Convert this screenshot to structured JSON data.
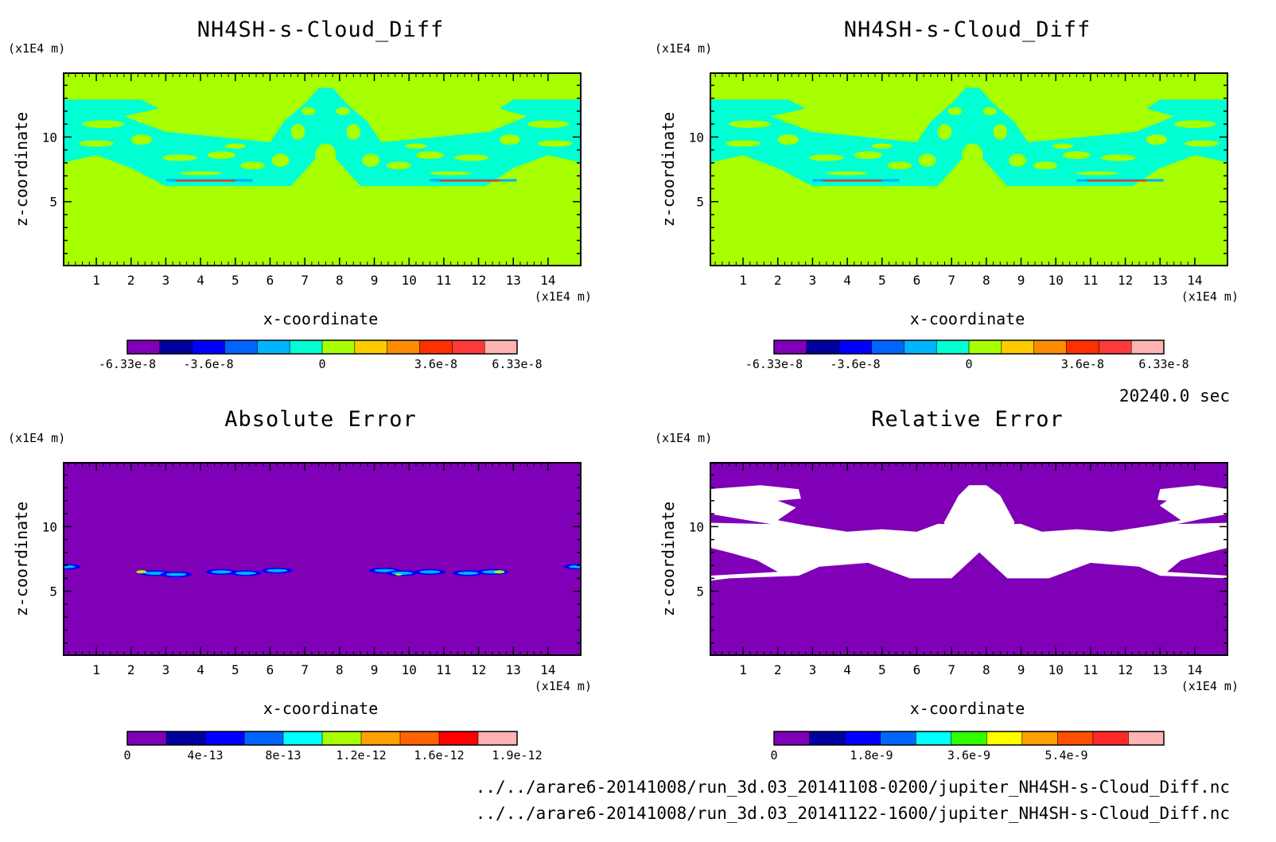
{
  "timestamp": "20240.0 sec",
  "footer": {
    "line1": "../../arare6-20141008/run_3d.03_20141108-0200/jupiter_NH4SH-s-Cloud_Diff.nc",
    "line2": "../../arare6-20141008/run_3d.03_20141122-1600/jupiter_NH4SH-s-Cloud_Diff.nc"
  },
  "chart_data": [
    {
      "type": "heatmap",
      "title": "NH4SH-s-Cloud_Diff",
      "xlabel": "x-coordinate",
      "ylabel": "z-coordinate",
      "x_unit": "(x1E4 m)",
      "y_unit": "(x1E4 m)",
      "xlim": [
        0.06,
        14.94
      ],
      "ylim": [
        0.06,
        14.94
      ],
      "xticks": [
        "1",
        "2",
        "3",
        "4",
        "5",
        "6",
        "7",
        "8",
        "9",
        "10",
        "11",
        "12",
        "13",
        "14"
      ],
      "yticks": [
        "5",
        "10"
      ],
      "background": "#a8ff00",
      "colorbar": {
        "colors": [
          "#7f00b7",
          "#00009f",
          "#0000ff",
          "#0064ff",
          "#00b4ff",
          "#00ffd2",
          "#a8ff00",
          "#ffcc00",
          "#ff8c00",
          "#ff3000",
          "#ff3a3a",
          "#ffb4b4"
        ],
        "labels": [
          "-6.33e-8",
          "-3.6e-8",
          "0",
          "3.6e-8",
          "6.33e-8"
        ]
      },
      "features": "cyan cloud band between z~5.5 and z~13 with central tower near x=7.5 and thin red streaks near z=6.5"
    },
    {
      "type": "heatmap",
      "title": "NH4SH-s-Cloud_Diff",
      "xlabel": "x-coordinate",
      "ylabel": "z-coordinate",
      "x_unit": "(x1E4 m)",
      "y_unit": "(x1E4 m)",
      "xlim": [
        0.06,
        14.94
      ],
      "ylim": [
        0.06,
        14.94
      ],
      "xticks": [
        "1",
        "2",
        "3",
        "4",
        "5",
        "6",
        "7",
        "8",
        "9",
        "10",
        "11",
        "12",
        "13",
        "14"
      ],
      "yticks": [
        "5",
        "10"
      ],
      "background": "#a8ff00",
      "colorbar": {
        "colors": [
          "#7f00b7",
          "#00009f",
          "#0000ff",
          "#0064ff",
          "#00b4ff",
          "#00ffd2",
          "#a8ff00",
          "#ffcc00",
          "#ff8c00",
          "#ff3000",
          "#ff3a3a",
          "#ffb4b4"
        ],
        "labels": [
          "-6.33e-8",
          "-3.6e-8",
          "0",
          "3.6e-8",
          "6.33e-8"
        ]
      },
      "features": "identical to left panel"
    },
    {
      "type": "heatmap",
      "title": "Absolute Error",
      "xlabel": "x-coordinate",
      "ylabel": "z-coordinate",
      "x_unit": "(x1E4 m)",
      "y_unit": "(x1E4 m)",
      "xlim": [
        0.06,
        14.94
      ],
      "ylim": [
        0.06,
        14.94
      ],
      "xticks": [
        "1",
        "2",
        "3",
        "4",
        "5",
        "6",
        "7",
        "8",
        "9",
        "10",
        "11",
        "12",
        "13",
        "14"
      ],
      "yticks": [
        "5",
        "10"
      ],
      "background": "#7f00b7",
      "colorbar": {
        "colors": [
          "#7f00b7",
          "#00009f",
          "#0000ff",
          "#0064ff",
          "#00ffff",
          "#a8ff00",
          "#ffa000",
          "#ff6400",
          "#ff0000",
          "#ffb4b4"
        ],
        "labels": [
          "0",
          "4e-13",
          "8e-13",
          "1.2e-12",
          "1.6e-12",
          "1.9e-12"
        ]
      },
      "features": "small blue/cyan blobs near z~6.5"
    },
    {
      "type": "heatmap",
      "title": "Relative Error",
      "xlabel": "x-coordinate",
      "ylabel": "z-coordinate",
      "x_unit": "(x1E4 m)",
      "y_unit": "(x1E4 m)",
      "xlim": [
        0.06,
        14.94
      ],
      "ylim": [
        0.06,
        14.94
      ],
      "xticks": [
        "1",
        "2",
        "3",
        "4",
        "5",
        "6",
        "7",
        "8",
        "9",
        "10",
        "11",
        "12",
        "13",
        "14"
      ],
      "yticks": [
        "5",
        "10"
      ],
      "background": "#7f00b7",
      "colorbar": {
        "colors": [
          "#7f00b7",
          "#00009f",
          "#0000ff",
          "#0064ff",
          "#00ffff",
          "#32ff00",
          "#ffff00",
          "#ffa000",
          "#ff5000",
          "#ff2828",
          "#ffb4b4"
        ],
        "labels": [
          "0",
          "1.8e-9",
          "3.6e-9",
          "5.4e-9"
        ]
      },
      "features": "white (undefined) region in cloud band z~5.5 to 13"
    }
  ]
}
